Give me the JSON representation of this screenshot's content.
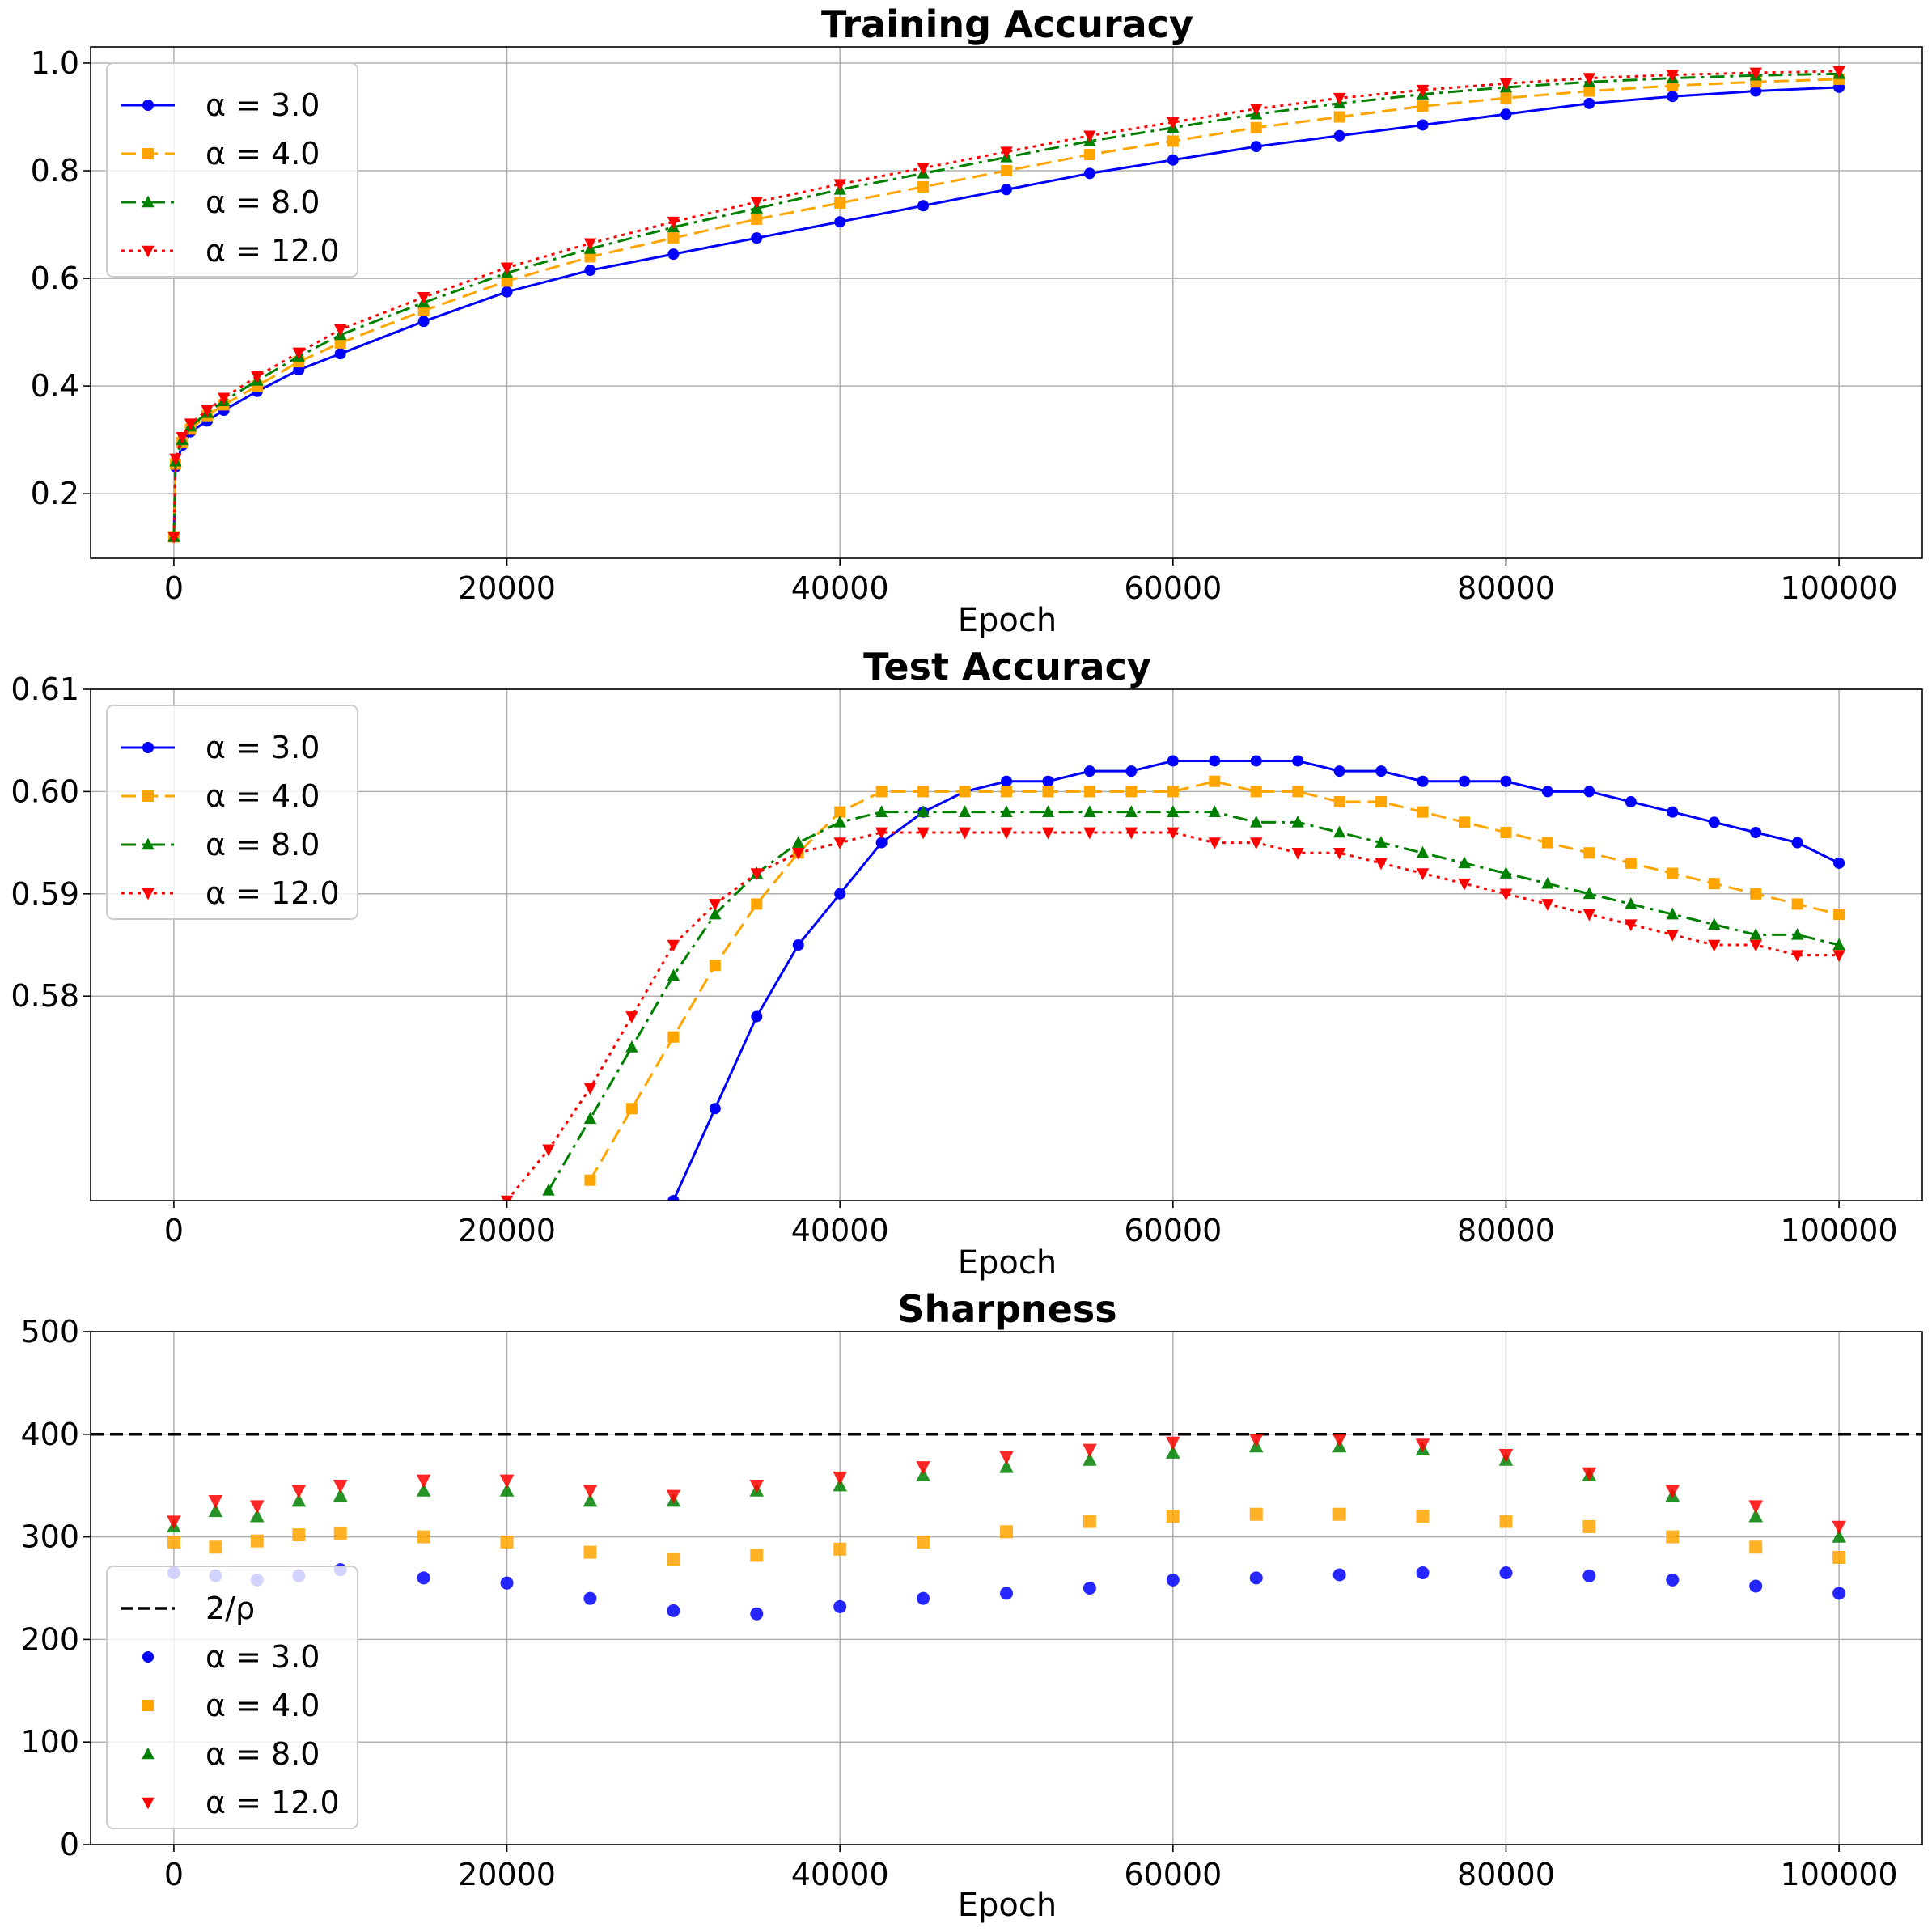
{
  "chart_data": [
    {
      "type": "line",
      "title": "Training Accuracy",
      "xlabel": "Epoch",
      "ylabel": "",
      "xlim": [
        -5000,
        105000
      ],
      "ylim": [
        0.08,
        1.03
      ],
      "x_ticks": [
        "0",
        "20000",
        "40000",
        "60000",
        "80000",
        "100000"
      ],
      "y_ticks": [
        "0.2",
        "0.4",
        "0.6",
        "0.8",
        "1.0"
      ],
      "grid": true,
      "legend_position": "upper-left",
      "x": [
        0,
        100,
        500,
        1000,
        2000,
        3000,
        5000,
        7500,
        10000,
        15000,
        20000,
        25000,
        30000,
        35000,
        40000,
        45000,
        50000,
        55000,
        60000,
        65000,
        70000,
        75000,
        80000,
        85000,
        90000,
        95000,
        100000
      ],
      "series": [
        {
          "name": "α = 3.0",
          "color": "#0000ff",
          "marker": "circle",
          "linestyle": "solid",
          "values": [
            0.12,
            0.25,
            0.29,
            0.315,
            0.335,
            0.355,
            0.39,
            0.43,
            0.46,
            0.52,
            0.575,
            0.615,
            0.645,
            0.675,
            0.705,
            0.735,
            0.765,
            0.795,
            0.82,
            0.845,
            0.865,
            0.885,
            0.905,
            0.925,
            0.938,
            0.948,
            0.955
          ]
        },
        {
          "name": "α = 4.0",
          "color": "#ffa500",
          "marker": "square",
          "linestyle": "dashed",
          "values": [
            0.12,
            0.255,
            0.295,
            0.32,
            0.345,
            0.365,
            0.4,
            0.445,
            0.48,
            0.54,
            0.595,
            0.64,
            0.675,
            0.71,
            0.74,
            0.77,
            0.8,
            0.83,
            0.855,
            0.88,
            0.9,
            0.92,
            0.935,
            0.948,
            0.958,
            0.965,
            0.97
          ]
        },
        {
          "name": "α = 8.0",
          "color": "#008000",
          "marker": "triangle-up",
          "linestyle": "dashdot",
          "values": [
            0.12,
            0.26,
            0.3,
            0.325,
            0.35,
            0.372,
            0.41,
            0.455,
            0.495,
            0.555,
            0.61,
            0.655,
            0.695,
            0.73,
            0.765,
            0.795,
            0.825,
            0.855,
            0.88,
            0.905,
            0.925,
            0.942,
            0.955,
            0.965,
            0.972,
            0.977,
            0.98
          ]
        },
        {
          "name": "α = 12.0",
          "color": "#ff0000",
          "marker": "triangle-down",
          "linestyle": "dotted",
          "values": [
            0.12,
            0.265,
            0.305,
            0.33,
            0.355,
            0.378,
            0.418,
            0.462,
            0.505,
            0.565,
            0.62,
            0.665,
            0.705,
            0.742,
            0.775,
            0.805,
            0.835,
            0.865,
            0.89,
            0.915,
            0.935,
            0.95,
            0.962,
            0.972,
            0.978,
            0.982,
            0.985
          ]
        }
      ]
    },
    {
      "type": "line",
      "title": "Test Accuracy",
      "xlabel": "Epoch",
      "ylabel": "",
      "xlim": [
        -5000,
        105000
      ],
      "ylim": [
        0.56,
        0.61
      ],
      "x_ticks": [
        "0",
        "20000",
        "40000",
        "60000",
        "80000",
        "100000"
      ],
      "y_ticks": [
        "0.58",
        "0.59",
        "0.60",
        "0.61"
      ],
      "grid": true,
      "legend_position": "upper-left",
      "x": [
        20000,
        22500,
        25000,
        27500,
        30000,
        32500,
        35000,
        37500,
        40000,
        42500,
        45000,
        47500,
        50000,
        52500,
        55000,
        57500,
        60000,
        62500,
        65000,
        67500,
        70000,
        72500,
        75000,
        77500,
        80000,
        82500,
        85000,
        87500,
        90000,
        92500,
        95000,
        97500,
        100000
      ],
      "series": [
        {
          "name": "α = 3.0",
          "color": "#0000ff",
          "marker": "circle",
          "linestyle": "solid",
          "values": [
            null,
            null,
            null,
            0.557,
            0.56,
            0.569,
            0.578,
            0.585,
            0.59,
            0.595,
            0.598,
            0.6,
            0.601,
            0.601,
            0.602,
            0.602,
            0.603,
            0.603,
            0.603,
            0.603,
            0.602,
            0.602,
            0.601,
            0.601,
            0.601,
            0.6,
            0.6,
            0.599,
            0.598,
            0.597,
            0.596,
            0.595,
            0.593
          ]
        },
        {
          "name": "α = 4.0",
          "color": "#ffa500",
          "marker": "square",
          "linestyle": "dashed",
          "values": [
            null,
            null,
            0.562,
            0.569,
            0.576,
            0.583,
            0.589,
            0.594,
            0.598,
            0.6,
            0.6,
            0.6,
            0.6,
            0.6,
            0.6,
            0.6,
            0.6,
            0.601,
            0.6,
            0.6,
            0.599,
            0.599,
            0.598,
            0.597,
            0.596,
            0.595,
            0.594,
            0.593,
            0.592,
            0.591,
            0.59,
            0.589,
            0.588
          ]
        },
        {
          "name": "α = 8.0",
          "color": "#008000",
          "marker": "triangle-up",
          "linestyle": "dashdot",
          "values": [
            null,
            0.561,
            0.568,
            0.575,
            0.582,
            0.588,
            0.592,
            0.595,
            0.597,
            0.598,
            0.598,
            0.598,
            0.598,
            0.598,
            0.598,
            0.598,
            0.598,
            0.598,
            0.597,
            0.597,
            0.596,
            0.595,
            0.594,
            0.593,
            0.592,
            0.591,
            0.59,
            0.589,
            0.588,
            0.587,
            0.586,
            0.586,
            0.585
          ]
        },
        {
          "name": "α = 12.0",
          "color": "#ff0000",
          "marker": "triangle-down",
          "linestyle": "dotted",
          "values": [
            0.56,
            0.565,
            0.571,
            0.578,
            0.585,
            0.589,
            0.592,
            0.594,
            0.595,
            0.596,
            0.596,
            0.596,
            0.596,
            0.596,
            0.596,
            0.596,
            0.596,
            0.595,
            0.595,
            0.594,
            0.594,
            0.593,
            0.592,
            0.591,
            0.59,
            0.589,
            0.588,
            0.587,
            0.586,
            0.585,
            0.585,
            0.584,
            0.584
          ]
        }
      ]
    },
    {
      "type": "scatter",
      "title": "Sharpness",
      "xlabel": "Epoch",
      "ylabel": "",
      "xlim": [
        -5000,
        105000
      ],
      "ylim": [
        0,
        500
      ],
      "x_ticks": [
        "0",
        "20000",
        "40000",
        "60000",
        "80000",
        "100000"
      ],
      "y_ticks": [
        "0",
        "100",
        "200",
        "300",
        "400",
        "500"
      ],
      "grid": true,
      "legend_position": "lower-left",
      "reference_line": {
        "label": "2/ρ",
        "y": 400,
        "color": "#000000",
        "linestyle": "dashed"
      },
      "x": [
        0,
        2500,
        5000,
        7500,
        10000,
        15000,
        20000,
        25000,
        30000,
        35000,
        40000,
        45000,
        50000,
        55000,
        60000,
        65000,
        70000,
        75000,
        80000,
        85000,
        90000,
        95000,
        100000
      ],
      "series": [
        {
          "name": "α = 3.0",
          "color": "#0000ff",
          "marker": "circle",
          "values": [
            265,
            262,
            258,
            262,
            268,
            260,
            255,
            240,
            228,
            225,
            232,
            240,
            245,
            250,
            258,
            260,
            263,
            265,
            265,
            262,
            258,
            252,
            245
          ]
        },
        {
          "name": "α = 4.0",
          "color": "#ffa500",
          "marker": "square",
          "values": [
            295,
            290,
            296,
            302,
            303,
            300,
            295,
            285,
            278,
            282,
            288,
            295,
            305,
            315,
            320,
            322,
            322,
            320,
            315,
            310,
            300,
            290,
            280
          ]
        },
        {
          "name": "α = 8.0",
          "color": "#008000",
          "marker": "triangle-up",
          "values": [
            310,
            325,
            320,
            335,
            340,
            345,
            345,
            335,
            335,
            345,
            350,
            360,
            368,
            375,
            382,
            388,
            388,
            385,
            375,
            360,
            340,
            320,
            300
          ]
        },
        {
          "name": "α = 12.0",
          "color": "#ff0000",
          "marker": "triangle-down",
          "values": [
            315,
            335,
            330,
            345,
            350,
            355,
            355,
            345,
            340,
            350,
            358,
            368,
            378,
            385,
            392,
            395,
            395,
            390,
            380,
            362,
            345,
            330,
            310
          ]
        }
      ]
    }
  ]
}
